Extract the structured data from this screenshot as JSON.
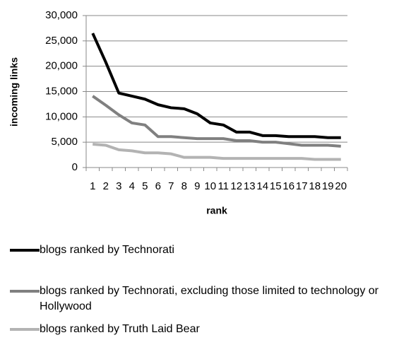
{
  "chart_data": {
    "type": "line",
    "x_label": "rank",
    "y_label": "incoming links",
    "categories": [
      "1",
      "2",
      "3",
      "4",
      "5",
      "6",
      "7",
      "8",
      "9",
      "10",
      "11",
      "12",
      "13",
      "14",
      "15",
      "16",
      "17",
      "18",
      "19",
      "20"
    ],
    "series": [
      {
        "name": "blogs ranked by Technorati",
        "color": "#000000",
        "values": [
          26500,
          20800,
          14700,
          14100,
          13500,
          12400,
          11800,
          11600,
          10600,
          8800,
          8400,
          7000,
          7000,
          6300,
          6300,
          6100,
          6100,
          6100,
          5900,
          5900
        ]
      },
      {
        "name": "blogs ranked by Technorati, excluding those limited to technology or Hollywood",
        "color": "#808080",
        "values": [
          14100,
          12300,
          10400,
          8800,
          8400,
          6100,
          6100,
          5900,
          5700,
          5700,
          5700,
          5300,
          5300,
          5000,
          5000,
          4700,
          4400,
          4400,
          4400,
          4200
        ]
      },
      {
        "name": "blogs ranked by Truth Laid Bear",
        "color": "#b3b3b3",
        "values": [
          4600,
          4400,
          3500,
          3300,
          2900,
          2900,
          2700,
          2000,
          2000,
          2000,
          1800,
          1800,
          1800,
          1800,
          1800,
          1800,
          1800,
          1600,
          1600,
          1600
        ]
      }
    ],
    "ylim": [
      0,
      30000
    ],
    "yticks": [
      {
        "value": 0,
        "label": "0"
      },
      {
        "value": 5000,
        "label": "5,000"
      },
      {
        "value": 10000,
        "label": "10,000"
      },
      {
        "value": 15000,
        "label": "15,000"
      },
      {
        "value": 20000,
        "label": "20,000"
      },
      {
        "value": 25000,
        "label": "25,000"
      },
      {
        "value": 30000,
        "label": "30,000"
      }
    ],
    "grid": true
  }
}
